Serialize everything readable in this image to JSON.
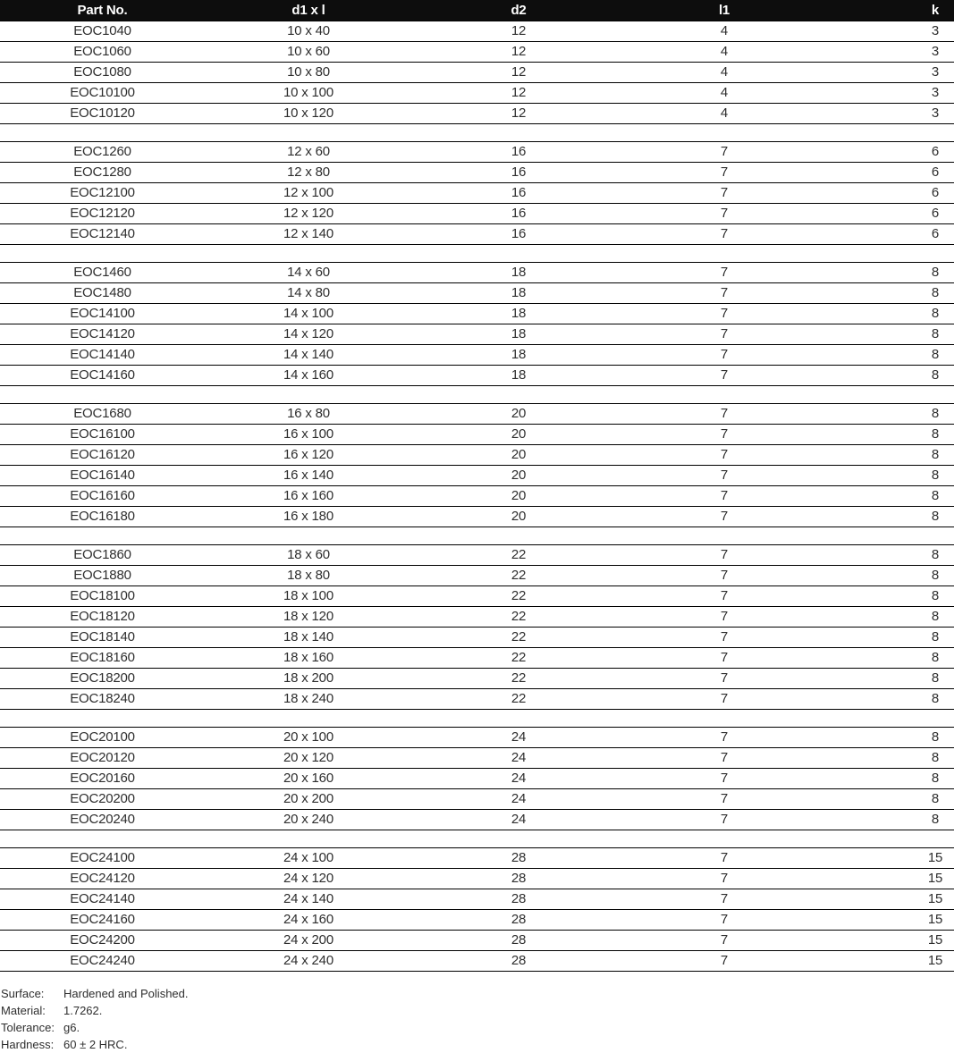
{
  "table": {
    "columns": [
      {
        "key": "part-no",
        "label": "Part No."
      },
      {
        "key": "d1xl",
        "label": "d1 x l"
      },
      {
        "key": "d2",
        "label": "d2"
      },
      {
        "key": "l1",
        "label": "l1"
      },
      {
        "key": "k",
        "label": "k"
      }
    ],
    "groups": [
      {
        "rows": [
          [
            "EOC1040",
            "10 x 40",
            "12",
            "4",
            "3"
          ],
          [
            "EOC1060",
            "10 x 60",
            "12",
            "4",
            "3"
          ],
          [
            "EOC1080",
            "10 x 80",
            "12",
            "4",
            "3"
          ],
          [
            "EOC10100",
            "10 x 100",
            "12",
            "4",
            "3"
          ],
          [
            "EOC10120",
            "10 x 120",
            "12",
            "4",
            "3"
          ]
        ]
      },
      {
        "rows": [
          [
            "EOC1260",
            "12 x 60",
            "16",
            "7",
            "6"
          ],
          [
            "EOC1280",
            "12 x 80",
            "16",
            "7",
            "6"
          ],
          [
            "EOC12100",
            "12 x 100",
            "16",
            "7",
            "6"
          ],
          [
            "EOC12120",
            "12 x 120",
            "16",
            "7",
            "6"
          ],
          [
            "EOC12140",
            "12 x 140",
            "16",
            "7",
            "6"
          ]
        ]
      },
      {
        "rows": [
          [
            "EOC1460",
            "14 x 60",
            "18",
            "7",
            "8"
          ],
          [
            "EOC1480",
            "14 x 80",
            "18",
            "7",
            "8"
          ],
          [
            "EOC14100",
            "14 x 100",
            "18",
            "7",
            "8"
          ],
          [
            "EOC14120",
            "14 x 120",
            "18",
            "7",
            "8"
          ],
          [
            "EOC14140",
            "14 x 140",
            "18",
            "7",
            "8"
          ],
          [
            "EOC14160",
            "14 x 160",
            "18",
            "7",
            "8"
          ]
        ]
      },
      {
        "rows": [
          [
            "EOC1680",
            "16 x 80",
            "20",
            "7",
            "8"
          ],
          [
            "EOC16100",
            "16 x 100",
            "20",
            "7",
            "8"
          ],
          [
            "EOC16120",
            "16 x 120",
            "20",
            "7",
            "8"
          ],
          [
            "EOC16140",
            "16 x 140",
            "20",
            "7",
            "8"
          ],
          [
            "EOC16160",
            "16 x 160",
            "20",
            "7",
            "8"
          ],
          [
            "EOC16180",
            "16 x 180",
            "20",
            "7",
            "8"
          ]
        ]
      },
      {
        "rows": [
          [
            "EOC1860",
            "18 x 60",
            "22",
            "7",
            "8"
          ],
          [
            "EOC1880",
            "18 x 80",
            "22",
            "7",
            "8"
          ],
          [
            "EOC18100",
            "18 x 100",
            "22",
            "7",
            "8"
          ],
          [
            "EOC18120",
            "18 x 120",
            "22",
            "7",
            "8"
          ],
          [
            "EOC18140",
            "18 x 140",
            "22",
            "7",
            "8"
          ],
          [
            "EOC18160",
            "18 x 160",
            "22",
            "7",
            "8"
          ],
          [
            "EOC18200",
            "18 x 200",
            "22",
            "7",
            "8"
          ],
          [
            "EOC18240",
            "18 x 240",
            "22",
            "7",
            "8"
          ]
        ]
      },
      {
        "rows": [
          [
            "EOC20100",
            "20 x 100",
            "24",
            "7",
            "8"
          ],
          [
            "EOC20120",
            "20 x 120",
            "24",
            "7",
            "8"
          ],
          [
            "EOC20160",
            "20 x 160",
            "24",
            "7",
            "8"
          ],
          [
            "EOC20200",
            "20 x 200",
            "24",
            "7",
            "8"
          ],
          [
            "EOC20240",
            "20 x 240",
            "24",
            "7",
            "8"
          ]
        ]
      },
      {
        "rows": [
          [
            "EOC24100",
            "24 x 100",
            "28",
            "7",
            "15"
          ],
          [
            "EOC24120",
            "24 x 120",
            "28",
            "7",
            "15"
          ],
          [
            "EOC24140",
            "24 x 140",
            "28",
            "7",
            "15"
          ],
          [
            "EOC24160",
            "24 x 160",
            "28",
            "7",
            "15"
          ],
          [
            "EOC24200",
            "24 x 200",
            "28",
            "7",
            "15"
          ],
          [
            "EOC24240",
            "24 x 240",
            "28",
            "7",
            "15"
          ]
        ]
      }
    ]
  },
  "notes": [
    {
      "label": "Surface:",
      "value": "Hardened and Polished."
    },
    {
      "label": "Material:",
      "value": "1.7262."
    },
    {
      "label": "Tolerance:",
      "value": "g6."
    },
    {
      "label": "Hardness:",
      "value": "60 ± 2 HRC."
    }
  ],
  "colors": {
    "header_bg": "#0d0d0d",
    "header_text": "#ffffff",
    "row_text": "#2e2e2e",
    "line": "#000000"
  }
}
